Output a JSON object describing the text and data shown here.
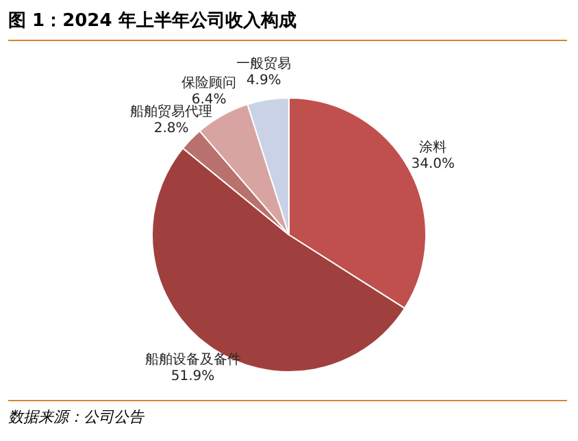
{
  "chart_data": {
    "type": "pie",
    "title": "图 1：2024 年上半年公司收入构成",
    "categories": [
      "涂料",
      "船舶设备及备件",
      "船舶贸易代理",
      "保险顾问",
      "一般贸易"
    ],
    "values": [
      34.0,
      51.9,
      2.8,
      6.4,
      4.9
    ],
    "value_labels": [
      "34.0%",
      "51.9%",
      "2.8%",
      "6.4%",
      "4.9%"
    ],
    "colors": [
      "#c0504d",
      "#a0403e",
      "#b9716d",
      "#d8a4a1",
      "#c9d2e6"
    ],
    "legend": false,
    "annotations": [
      "数据来源：公司公告"
    ]
  }
}
